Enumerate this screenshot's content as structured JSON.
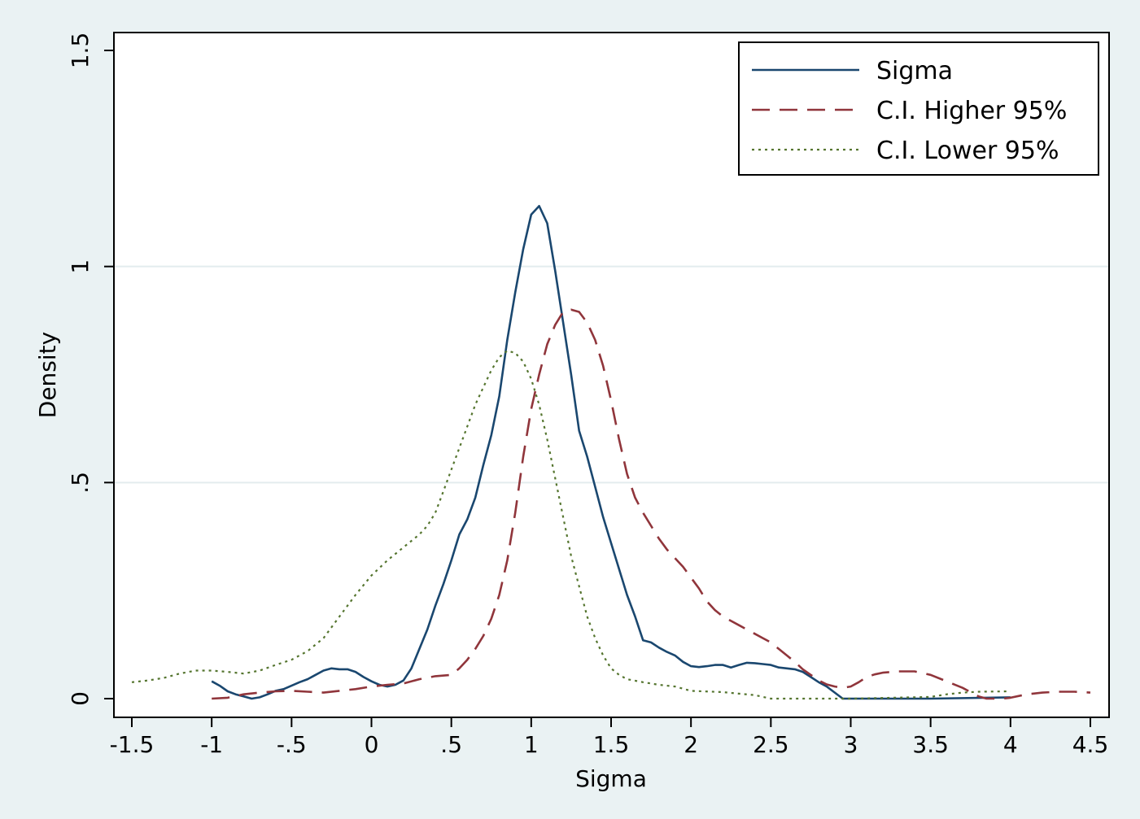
{
  "chart_data": {
    "type": "line",
    "xlabel": "Sigma",
    "ylabel": "Density",
    "xlim": [
      -1.5,
      4.5
    ],
    "ylim": [
      0,
      1.5
    ],
    "x_ticks": [
      -1.5,
      -1,
      -0.5,
      0,
      0.5,
      1,
      1.5,
      2,
      2.5,
      3,
      3.5,
      4,
      4.5
    ],
    "x_tick_labels": [
      "-1.5",
      "-1",
      "-.5",
      "0",
      ".5",
      "1",
      "1.5",
      "2",
      "2.5",
      "3",
      "3.5",
      "4",
      "4.5"
    ],
    "y_ticks": [
      0,
      0.5,
      1,
      1.5
    ],
    "y_tick_labels": [
      "0",
      ".5",
      "1",
      "1.5"
    ],
    "grid": "horizontal",
    "legend_position": "top-right",
    "series": [
      {
        "name": "Sigma",
        "color": "#1a476f",
        "dash": "solid",
        "points": [
          [
            -1.0,
            0.04
          ],
          [
            -0.95,
            0.03
          ],
          [
            -0.9,
            0.017
          ],
          [
            -0.85,
            0.01
          ],
          [
            -0.8,
            0.005
          ],
          [
            -0.75,
            0.0
          ],
          [
            -0.7,
            0.003
          ],
          [
            -0.65,
            0.01
          ],
          [
            -0.6,
            0.018
          ],
          [
            -0.55,
            0.022
          ],
          [
            -0.5,
            0.03
          ],
          [
            -0.45,
            0.038
          ],
          [
            -0.4,
            0.045
          ],
          [
            -0.35,
            0.055
          ],
          [
            -0.3,
            0.065
          ],
          [
            -0.25,
            0.07
          ],
          [
            -0.2,
            0.068
          ],
          [
            -0.15,
            0.068
          ],
          [
            -0.1,
            0.062
          ],
          [
            -0.05,
            0.05
          ],
          [
            0.0,
            0.04
          ],
          [
            0.05,
            0.032
          ],
          [
            0.1,
            0.028
          ],
          [
            0.15,
            0.032
          ],
          [
            0.2,
            0.042
          ],
          [
            0.25,
            0.07
          ],
          [
            0.3,
            0.115
          ],
          [
            0.35,
            0.16
          ],
          [
            0.4,
            0.215
          ],
          [
            0.45,
            0.265
          ],
          [
            0.5,
            0.32
          ],
          [
            0.55,
            0.38
          ],
          [
            0.6,
            0.415
          ],
          [
            0.65,
            0.465
          ],
          [
            0.7,
            0.54
          ],
          [
            0.75,
            0.61
          ],
          [
            0.8,
            0.7
          ],
          [
            0.85,
            0.83
          ],
          [
            0.9,
            0.94
          ],
          [
            0.95,
            1.04
          ],
          [
            1.0,
            1.12
          ],
          [
            1.05,
            1.14
          ],
          [
            1.1,
            1.1
          ],
          [
            1.15,
            0.99
          ],
          [
            1.2,
            0.87
          ],
          [
            1.25,
            0.75
          ],
          [
            1.3,
            0.62
          ],
          [
            1.35,
            0.56
          ],
          [
            1.4,
            0.49
          ],
          [
            1.45,
            0.42
          ],
          [
            1.5,
            0.36
          ],
          [
            1.55,
            0.3
          ],
          [
            1.6,
            0.24
          ],
          [
            1.65,
            0.19
          ],
          [
            1.7,
            0.135
          ],
          [
            1.75,
            0.13
          ],
          [
            1.8,
            0.118
          ],
          [
            1.85,
            0.108
          ],
          [
            1.9,
            0.1
          ],
          [
            1.95,
            0.085
          ],
          [
            2.0,
            0.075
          ],
          [
            2.05,
            0.073
          ],
          [
            2.1,
            0.075
          ],
          [
            2.15,
            0.078
          ],
          [
            2.2,
            0.078
          ],
          [
            2.25,
            0.072
          ],
          [
            2.3,
            0.078
          ],
          [
            2.35,
            0.083
          ],
          [
            2.4,
            0.082
          ],
          [
            2.45,
            0.08
          ],
          [
            2.5,
            0.078
          ],
          [
            2.55,
            0.072
          ],
          [
            2.6,
            0.07
          ],
          [
            2.65,
            0.068
          ],
          [
            2.7,
            0.062
          ],
          [
            2.75,
            0.05
          ],
          [
            2.8,
            0.038
          ],
          [
            2.85,
            0.028
          ],
          [
            2.9,
            0.014
          ],
          [
            2.95,
            0.0
          ],
          [
            3.0,
            0.0
          ],
          [
            3.5,
            0.0
          ],
          [
            4.0,
            0.003
          ]
        ]
      },
      {
        "name": "C.I. Higher 95%",
        "color": "#90353b",
        "dash": "dash",
        "points": [
          [
            -1.0,
            0.0
          ],
          [
            -0.9,
            0.002
          ],
          [
            -0.8,
            0.01
          ],
          [
            -0.7,
            0.014
          ],
          [
            -0.6,
            0.017
          ],
          [
            -0.5,
            0.018
          ],
          [
            -0.4,
            0.016
          ],
          [
            -0.3,
            0.014
          ],
          [
            -0.2,
            0.018
          ],
          [
            -0.1,
            0.022
          ],
          [
            0.0,
            0.028
          ],
          [
            0.1,
            0.032
          ],
          [
            0.2,
            0.035
          ],
          [
            0.3,
            0.045
          ],
          [
            0.4,
            0.052
          ],
          [
            0.5,
            0.055
          ],
          [
            0.55,
            0.07
          ],
          [
            0.6,
            0.09
          ],
          [
            0.65,
            0.115
          ],
          [
            0.7,
            0.145
          ],
          [
            0.75,
            0.185
          ],
          [
            0.8,
            0.24
          ],
          [
            0.85,
            0.32
          ],
          [
            0.9,
            0.43
          ],
          [
            0.95,
            0.56
          ],
          [
            1.0,
            0.67
          ],
          [
            1.05,
            0.75
          ],
          [
            1.1,
            0.82
          ],
          [
            1.15,
            0.865
          ],
          [
            1.2,
            0.895
          ],
          [
            1.25,
            0.9
          ],
          [
            1.3,
            0.895
          ],
          [
            1.35,
            0.87
          ],
          [
            1.4,
            0.83
          ],
          [
            1.45,
            0.77
          ],
          [
            1.5,
            0.69
          ],
          [
            1.55,
            0.6
          ],
          [
            1.6,
            0.52
          ],
          [
            1.65,
            0.465
          ],
          [
            1.7,
            0.43
          ],
          [
            1.75,
            0.4
          ],
          [
            1.8,
            0.37
          ],
          [
            1.85,
            0.345
          ],
          [
            1.9,
            0.325
          ],
          [
            1.95,
            0.305
          ],
          [
            2.0,
            0.28
          ],
          [
            2.05,
            0.255
          ],
          [
            2.1,
            0.225
          ],
          [
            2.15,
            0.205
          ],
          [
            2.2,
            0.19
          ],
          [
            2.25,
            0.18
          ],
          [
            2.3,
            0.17
          ],
          [
            2.35,
            0.16
          ],
          [
            2.4,
            0.15
          ],
          [
            2.45,
            0.14
          ],
          [
            2.5,
            0.13
          ],
          [
            2.55,
            0.115
          ],
          [
            2.6,
            0.1
          ],
          [
            2.65,
            0.085
          ],
          [
            2.7,
            0.068
          ],
          [
            2.75,
            0.055
          ],
          [
            2.8,
            0.042
          ],
          [
            2.85,
            0.033
          ],
          [
            2.9,
            0.028
          ],
          [
            2.95,
            0.025
          ],
          [
            3.0,
            0.028
          ],
          [
            3.05,
            0.038
          ],
          [
            3.1,
            0.05
          ],
          [
            3.15,
            0.056
          ],
          [
            3.2,
            0.06
          ],
          [
            3.3,
            0.063
          ],
          [
            3.4,
            0.063
          ],
          [
            3.5,
            0.055
          ],
          [
            3.6,
            0.04
          ],
          [
            3.7,
            0.025
          ],
          [
            3.8,
            0.005
          ],
          [
            3.85,
            0.0
          ],
          [
            3.95,
            0.0
          ],
          [
            4.0,
            0.002
          ],
          [
            4.1,
            0.01
          ],
          [
            4.2,
            0.014
          ],
          [
            4.3,
            0.016
          ],
          [
            4.4,
            0.016
          ],
          [
            4.5,
            0.014
          ]
        ]
      },
      {
        "name": "C.I. Lower 95%",
        "color": "#55752f",
        "dash": "dot",
        "points": [
          [
            -1.5,
            0.038
          ],
          [
            -1.4,
            0.042
          ],
          [
            -1.3,
            0.048
          ],
          [
            -1.2,
            0.058
          ],
          [
            -1.1,
            0.065
          ],
          [
            -1.0,
            0.065
          ],
          [
            -0.9,
            0.062
          ],
          [
            -0.8,
            0.058
          ],
          [
            -0.7,
            0.065
          ],
          [
            -0.6,
            0.078
          ],
          [
            -0.5,
            0.09
          ],
          [
            -0.4,
            0.11
          ],
          [
            -0.3,
            0.14
          ],
          [
            -0.2,
            0.19
          ],
          [
            -0.1,
            0.24
          ],
          [
            0.0,
            0.285
          ],
          [
            0.1,
            0.32
          ],
          [
            0.2,
            0.35
          ],
          [
            0.3,
            0.38
          ],
          [
            0.35,
            0.4
          ],
          [
            0.4,
            0.43
          ],
          [
            0.45,
            0.48
          ],
          [
            0.5,
            0.53
          ],
          [
            0.55,
            0.58
          ],
          [
            0.6,
            0.63
          ],
          [
            0.65,
            0.68
          ],
          [
            0.7,
            0.72
          ],
          [
            0.75,
            0.76
          ],
          [
            0.8,
            0.79
          ],
          [
            0.85,
            0.805
          ],
          [
            0.9,
            0.8
          ],
          [
            0.95,
            0.78
          ],
          [
            1.0,
            0.74
          ],
          [
            1.05,
            0.68
          ],
          [
            1.1,
            0.6
          ],
          [
            1.15,
            0.51
          ],
          [
            1.2,
            0.42
          ],
          [
            1.25,
            0.33
          ],
          [
            1.3,
            0.26
          ],
          [
            1.35,
            0.19
          ],
          [
            1.4,
            0.14
          ],
          [
            1.45,
            0.1
          ],
          [
            1.5,
            0.07
          ],
          [
            1.55,
            0.055
          ],
          [
            1.6,
            0.045
          ],
          [
            1.7,
            0.038
          ],
          [
            1.8,
            0.032
          ],
          [
            1.9,
            0.028
          ],
          [
            2.0,
            0.018
          ],
          [
            2.2,
            0.015
          ],
          [
            2.4,
            0.008
          ],
          [
            2.5,
            0.0
          ],
          [
            3.0,
            0.0
          ],
          [
            3.5,
            0.004
          ],
          [
            3.6,
            0.01
          ],
          [
            3.7,
            0.014
          ],
          [
            3.8,
            0.016
          ],
          [
            4.0,
            0.017
          ]
        ]
      }
    ]
  }
}
